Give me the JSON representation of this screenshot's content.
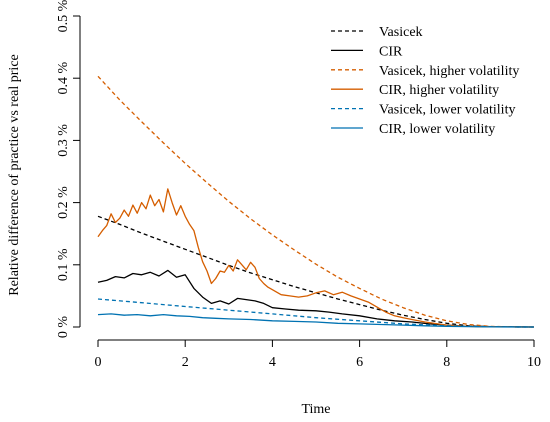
{
  "chart_data": {
    "type": "line",
    "xlabel": "Time",
    "ylabel": "Relative difference of practice vs real price",
    "xlim": [
      0,
      10
    ],
    "ylim": [
      0,
      0.5
    ],
    "xticks": [
      0,
      2,
      4,
      6,
      8,
      10
    ],
    "xtick_labels": [
      "0",
      "2",
      "4",
      "6",
      "8",
      "10"
    ],
    "yticks": [
      0,
      0.1,
      0.2,
      0.3,
      0.4,
      0.5
    ],
    "ytick_labels": [
      "0 %",
      "0.1 %",
      "0.2 %",
      "0.3 %",
      "0.4 %",
      "0.5 %"
    ],
    "grid": false,
    "legend_position": "top-right",
    "series": [
      {
        "name": "Vasicek",
        "color": "#000000",
        "style": "dashed",
        "x": [
          0,
          0.5,
          1,
          1.5,
          2,
          2.5,
          3,
          3.5,
          4,
          4.5,
          5,
          5.5,
          6,
          6.5,
          7,
          7.5,
          8,
          8.5,
          9,
          9.5,
          10
        ],
        "y": [
          0.178,
          0.165,
          0.151,
          0.138,
          0.125,
          0.112,
          0.099,
          0.087,
          0.076,
          0.065,
          0.055,
          0.045,
          0.036,
          0.027,
          0.019,
          0.012,
          0.006,
          0.002,
          0.0005,
          0.0001,
          0.0
        ]
      },
      {
        "name": "CIR",
        "color": "#000000",
        "style": "solid",
        "x": [
          0,
          0.2,
          0.4,
          0.6,
          0.8,
          1.0,
          1.2,
          1.4,
          1.6,
          1.8,
          2.0,
          2.2,
          2.4,
          2.6,
          2.8,
          3.0,
          3.2,
          3.4,
          3.6,
          3.8,
          4.0,
          4.3,
          4.6,
          5.0,
          5.3,
          5.6,
          6.0,
          6.4,
          6.8,
          7.2,
          7.6,
          8.0,
          8.5,
          9.0,
          9.5,
          10
        ],
        "y": [
          0.072,
          0.075,
          0.081,
          0.079,
          0.086,
          0.084,
          0.088,
          0.082,
          0.091,
          0.08,
          0.084,
          0.062,
          0.048,
          0.038,
          0.042,
          0.037,
          0.046,
          0.044,
          0.042,
          0.038,
          0.031,
          0.029,
          0.027,
          0.026,
          0.024,
          0.021,
          0.018,
          0.013,
          0.01,
          0.008,
          0.005,
          0.003,
          0.001,
          0.0005,
          0.0001,
          0.0
        ]
      },
      {
        "name": "Vasicek, higher volatility",
        "color": "#D55E00",
        "style": "dashed",
        "x": [
          0,
          0.5,
          1,
          1.5,
          2,
          2.5,
          3,
          3.5,
          4,
          4.5,
          5,
          5.5,
          6,
          6.5,
          7,
          7.5,
          8,
          8.5,
          9,
          9.5,
          10
        ],
        "y": [
          0.403,
          0.365,
          0.33,
          0.296,
          0.263,
          0.232,
          0.202,
          0.174,
          0.148,
          0.124,
          0.101,
          0.08,
          0.062,
          0.045,
          0.031,
          0.019,
          0.01,
          0.004,
          0.001,
          0.0002,
          0.0
        ]
      },
      {
        "name": "CIR, higher volatility",
        "color": "#D55E00",
        "style": "solid",
        "x": [
          0,
          0.1,
          0.2,
          0.3,
          0.4,
          0.5,
          0.6,
          0.7,
          0.8,
          0.9,
          1.0,
          1.1,
          1.2,
          1.3,
          1.4,
          1.5,
          1.6,
          1.7,
          1.8,
          1.9,
          2.0,
          2.1,
          2.2,
          2.3,
          2.4,
          2.5,
          2.6,
          2.7,
          2.8,
          2.9,
          3.0,
          3.1,
          3.2,
          3.3,
          3.4,
          3.5,
          3.6,
          3.7,
          3.8,
          3.9,
          4.0,
          4.2,
          4.4,
          4.6,
          4.8,
          5.0,
          5.2,
          5.4,
          5.6,
          5.8,
          6.0,
          6.2,
          6.4,
          6.6,
          6.8,
          7.0,
          7.2,
          7.5,
          7.8,
          8.0,
          8.5,
          9.0,
          9.5,
          10
        ],
        "y": [
          0.145,
          0.155,
          0.163,
          0.182,
          0.168,
          0.175,
          0.188,
          0.178,
          0.196,
          0.183,
          0.2,
          0.19,
          0.212,
          0.195,
          0.205,
          0.185,
          0.222,
          0.2,
          0.18,
          0.195,
          0.178,
          0.165,
          0.155,
          0.128,
          0.105,
          0.09,
          0.07,
          0.078,
          0.09,
          0.088,
          0.099,
          0.09,
          0.108,
          0.1,
          0.092,
          0.104,
          0.096,
          0.078,
          0.07,
          0.064,
          0.06,
          0.052,
          0.05,
          0.048,
          0.05,
          0.055,
          0.058,
          0.052,
          0.056,
          0.05,
          0.045,
          0.04,
          0.032,
          0.024,
          0.018,
          0.015,
          0.012,
          0.008,
          0.005,
          0.003,
          0.001,
          0.0005,
          0.0001,
          0.0
        ]
      },
      {
        "name": "Vasicek, lower volatility",
        "color": "#0072B2",
        "style": "dashed",
        "x": [
          0,
          1,
          2,
          3,
          4,
          5,
          6,
          7,
          8,
          9,
          10
        ],
        "y": [
          0.045,
          0.039,
          0.033,
          0.027,
          0.021,
          0.015,
          0.01,
          0.005,
          0.002,
          0.0003,
          0.0
        ]
      },
      {
        "name": "CIR, lower volatility",
        "color": "#0072B2",
        "style": "solid",
        "x": [
          0,
          0.3,
          0.6,
          0.9,
          1.2,
          1.5,
          1.8,
          2.1,
          2.4,
          2.7,
          3.0,
          3.5,
          4.0,
          4.5,
          5.0,
          5.5,
          6.0,
          6.5,
          7.0,
          7.5,
          8.0,
          9.0,
          10
        ],
        "y": [
          0.02,
          0.021,
          0.019,
          0.02,
          0.018,
          0.02,
          0.018,
          0.017,
          0.015,
          0.014,
          0.013,
          0.012,
          0.01,
          0.009,
          0.008,
          0.006,
          0.005,
          0.004,
          0.003,
          0.002,
          0.001,
          0.0002,
          0.0
        ]
      }
    ]
  }
}
